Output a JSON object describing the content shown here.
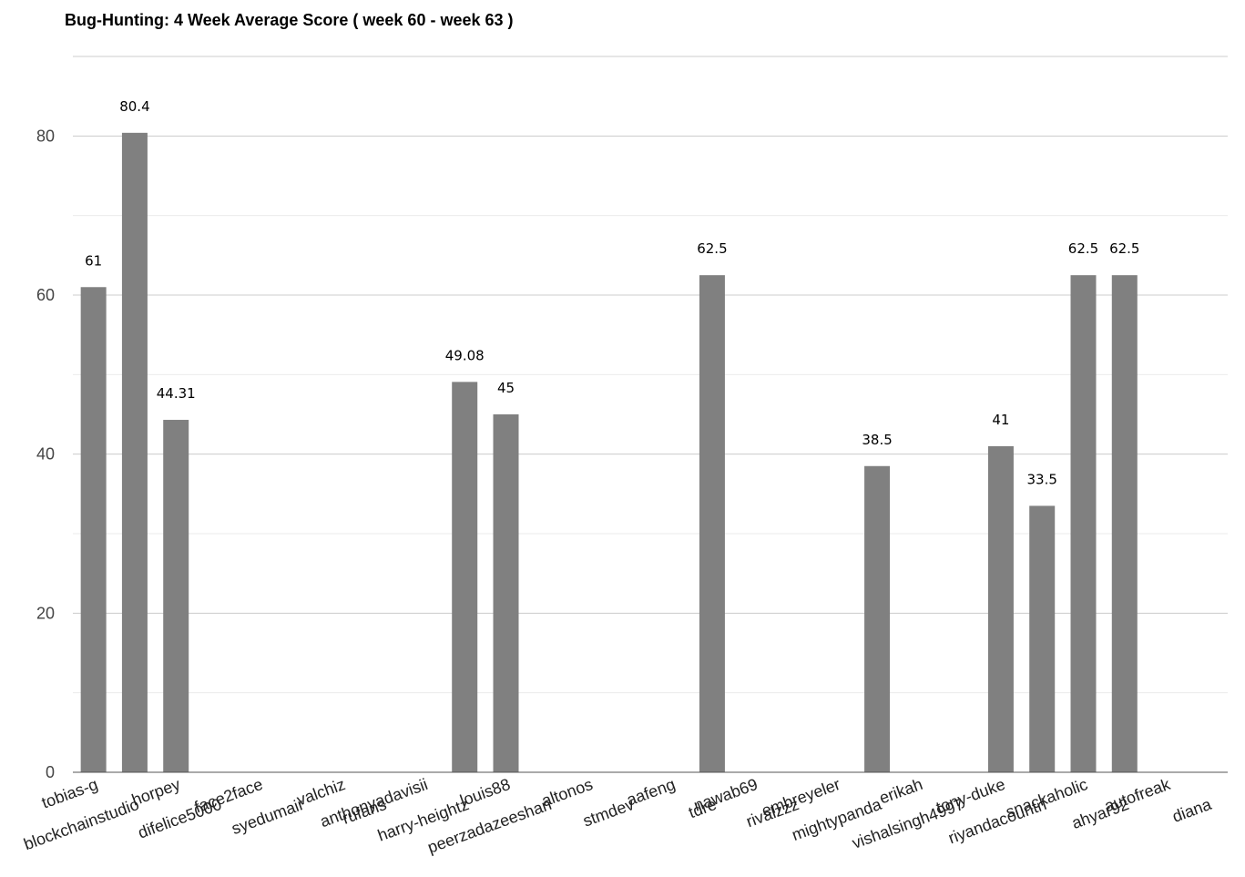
{
  "chart_data": {
    "type": "bar",
    "title": "Bug-Hunting: 4 Week Average Score ( week 60 - week 63 )",
    "xlabel": "",
    "ylabel": "",
    "ylim": [
      0,
      90
    ],
    "yticks": [
      0,
      20,
      40,
      60,
      80
    ],
    "grid": true,
    "bar_color": "#808080",
    "grid_color": "#cccccc",
    "minor_grid_color": "#ebebeb",
    "categories": [
      "tobias-g",
      "blockchainstudio",
      "horpey",
      "difelice5000",
      "face2face",
      "syedumair",
      "valchiz",
      "rufans",
      "anthonyadavisii",
      "harry-heightz",
      "louis88",
      "peerzadazeeshan",
      "altonos",
      "stmdev",
      "aafeng",
      "tdre",
      "nawab69",
      "rivalzzz",
      "embreyeler",
      "mightypanda",
      "erikah",
      "vishalsingh4997",
      "tony-duke",
      "riyandacountri",
      "snackaholic",
      "ahyar92",
      "autofreak",
      "diana"
    ],
    "values": [
      61,
      80.4,
      44.31,
      0,
      0,
      0,
      0,
      0,
      0,
      49.08,
      45,
      0,
      0,
      0,
      0,
      62.5,
      0,
      0,
      0,
      38.5,
      0,
      0,
      41,
      33.5,
      62.5,
      62.5,
      0,
      0
    ],
    "data_labels": [
      "61",
      "80.4",
      "44.31",
      "",
      "",
      "",
      "",
      "",
      "",
      "49.08",
      "45",
      "",
      "",
      "",
      "",
      "62.5",
      "",
      "",
      "",
      "38.5",
      "",
      "",
      "41",
      "33.5",
      "62.5",
      "62.5",
      "",
      ""
    ]
  }
}
